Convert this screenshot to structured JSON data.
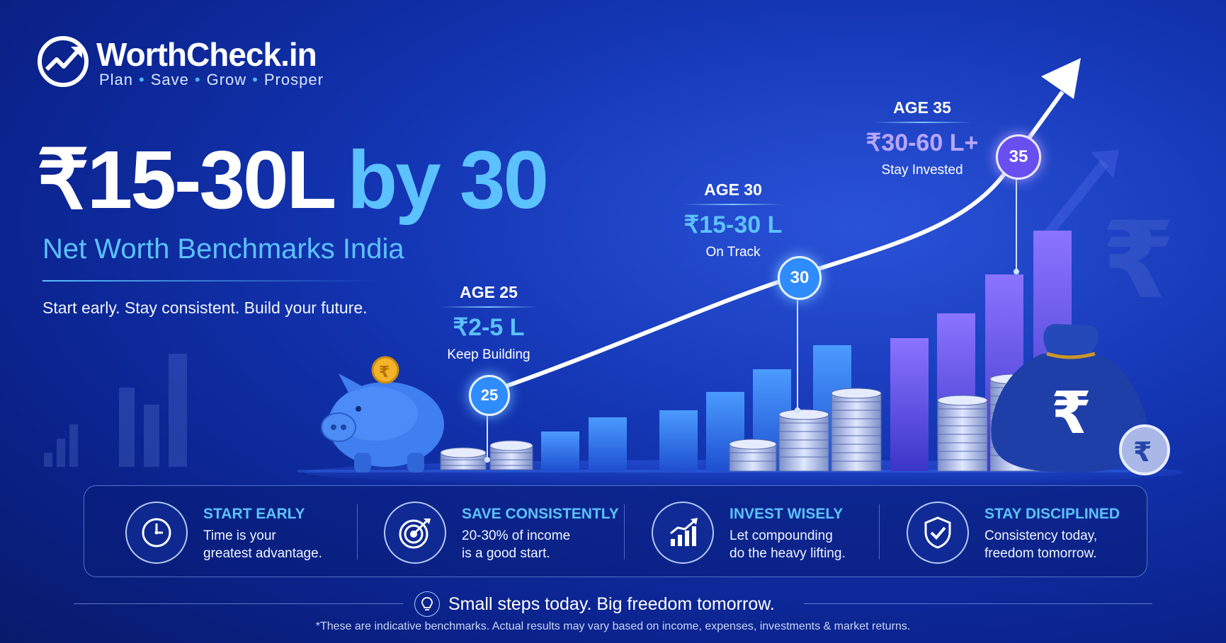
{
  "brand": {
    "name": "WorthCheck.in",
    "tagline": [
      "Plan",
      "Save",
      "Grow",
      "Prosper"
    ]
  },
  "headline": {
    "amount": "₹15-30L",
    "suffix": "by 30"
  },
  "subtitle": "Net Worth Benchmarks India",
  "motto": "Start early. Stay consistent. Build your future.",
  "milestones": [
    {
      "marker": "25",
      "age": "AGE 25",
      "amount": "₹2-5 L",
      "status": "Keep Building"
    },
    {
      "marker": "30",
      "age": "AGE 30",
      "amount": "₹15-30 L",
      "status": "On Track"
    },
    {
      "marker": "35",
      "age": "AGE 35",
      "amount": "₹30-60 L+",
      "status": "Stay Invested"
    }
  ],
  "tips": [
    {
      "icon": "clock-icon",
      "title": "START EARLY",
      "line1": "Time is your",
      "line2": "greatest advantage."
    },
    {
      "icon": "target-icon",
      "title": "SAVE CONSISTENTLY",
      "line1": "20-30% of income",
      "line2": "is a good start."
    },
    {
      "icon": "growth-chart-icon",
      "title": "INVEST WISELY",
      "line1": "Let compounding",
      "line2": "do the heavy lifting."
    },
    {
      "icon": "shield-check-icon",
      "title": "STAY DISCIPLINED",
      "line1": "Consistency today,",
      "line2": "freedom tomorrow."
    }
  ],
  "footer": {
    "icon": "lightbulb-icon",
    "slogan": "Small steps today. Big freedom tomorrow.",
    "disclaimer": "*These are indicative benchmarks. Actual results may vary based on income, expenses, investments & market returns."
  },
  "colors": {
    "accent": "#5cc2ff",
    "accent_purple": "#8a6bff",
    "background": "#1436b4"
  }
}
